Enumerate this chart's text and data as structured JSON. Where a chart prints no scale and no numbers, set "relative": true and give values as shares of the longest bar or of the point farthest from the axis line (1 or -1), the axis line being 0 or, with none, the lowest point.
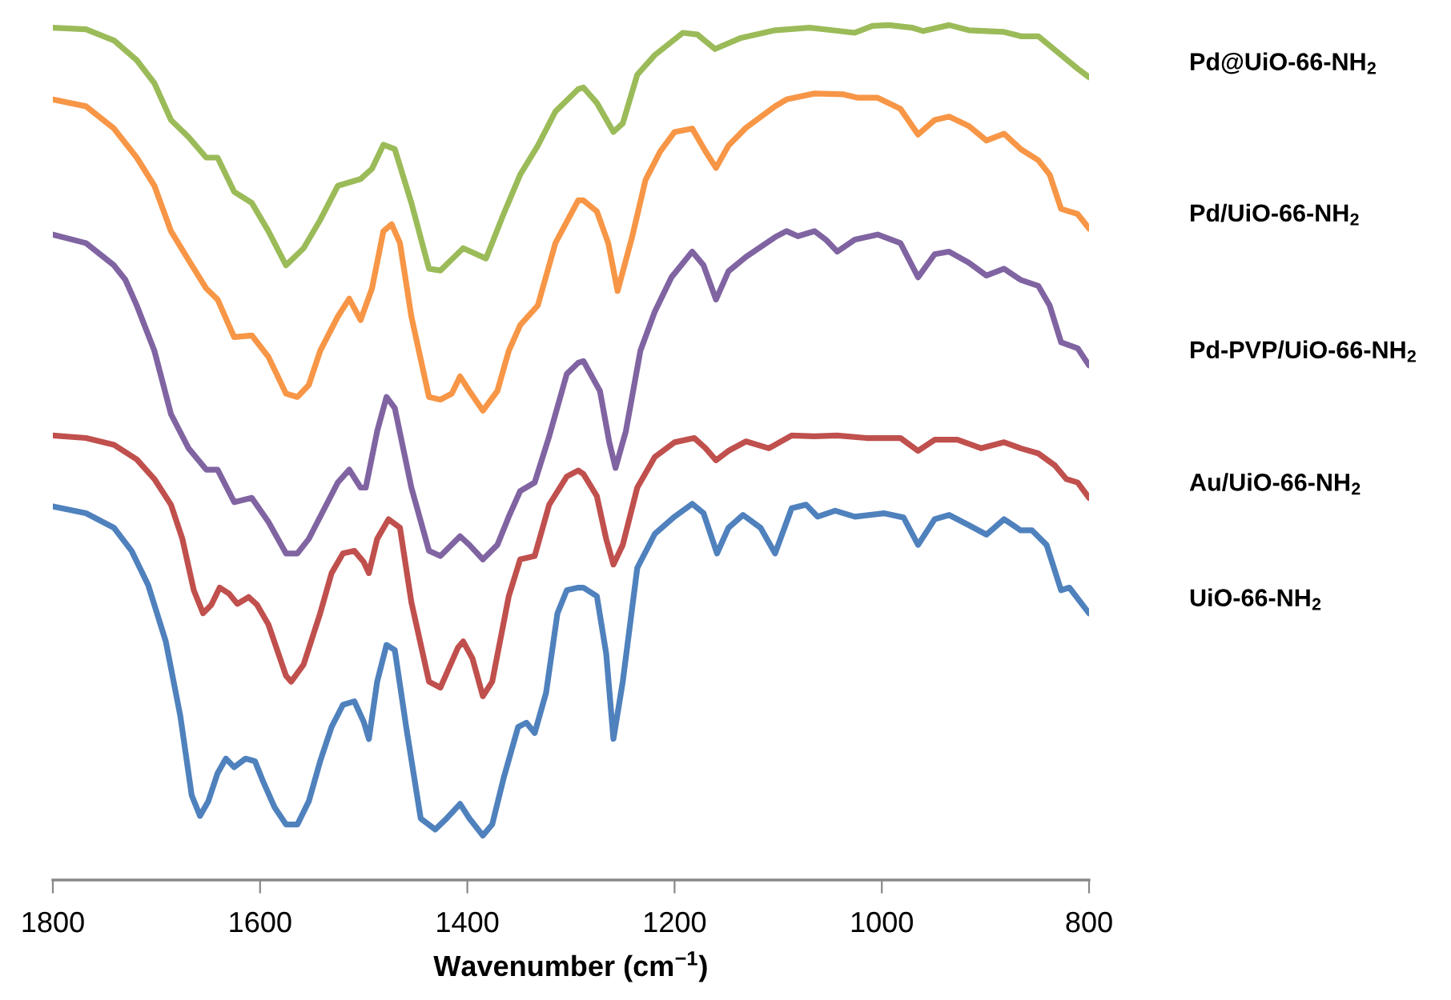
{
  "chart_data": {
    "type": "line",
    "relative": true,
    "xlabel": "Wavenumber (cm$^{−1}$)",
    "xlim": [
      1800,
      800
    ],
    "xticks": [
      1800,
      1600,
      1400,
      1200,
      1000,
      800
    ],
    "grid": false,
    "legend": false,
    "marker": "none",
    "line_style": "solid",
    "series": [
      {
        "name": "Pd@UiO-66-NH$_{2}$",
        "color": "#9bbb59",
        "x": [
          1800,
          1768,
          1741,
          1719,
          1702,
          1686,
          1669,
          1652,
          1641,
          1625,
          1608,
          1592,
          1575,
          1558,
          1542,
          1525,
          1503,
          1492,
          1481,
          1470,
          1454,
          1437,
          1426,
          1404,
          1382,
          1365,
          1349,
          1332,
          1315,
          1293,
          1288,
          1275,
          1259,
          1250,
          1236,
          1219,
          1192,
          1178,
          1161,
          1136,
          1103,
          1070,
          1048,
          1026,
          1009,
          993,
          971,
          960,
          935,
          916,
          882,
          866,
          849,
          827,
          811,
          800
        ],
        "values": [
          0.997,
          0.995,
          0.982,
          0.959,
          0.932,
          0.889,
          0.869,
          0.845,
          0.845,
          0.805,
          0.792,
          0.759,
          0.719,
          0.739,
          0.772,
          0.812,
          0.82,
          0.832,
          0.86,
          0.855,
          0.792,
          0.715,
          0.713,
          0.739,
          0.727,
          0.779,
          0.825,
          0.859,
          0.899,
          0.925,
          0.927,
          0.909,
          0.875,
          0.885,
          0.942,
          0.965,
          0.991,
          0.989,
          0.972,
          0.985,
          0.994,
          0.997,
          0.994,
          0.991,
          0.999,
          1.0,
          0.997,
          0.993,
          1.0,
          0.994,
          0.992,
          0.987,
          0.987,
          0.965,
          0.949,
          0.939
        ]
      },
      {
        "name": "Pd/UiO-66-NH$_{2}$",
        "color": "#f79646",
        "x": [
          1800,
          1768,
          1741,
          1719,
          1702,
          1686,
          1669,
          1652,
          1641,
          1625,
          1608,
          1592,
          1575,
          1564,
          1553,
          1542,
          1525,
          1514,
          1503,
          1492,
          1481,
          1473,
          1465,
          1454,
          1437,
          1426,
          1415,
          1407,
          1398,
          1385,
          1371,
          1360,
          1349,
          1332,
          1315,
          1293,
          1288,
          1275,
          1264,
          1255,
          1241,
          1228,
          1214,
          1200,
          1183,
          1170,
          1160,
          1148,
          1131,
          1103,
          1092,
          1065,
          1037,
          1023,
          1004,
          982,
          965,
          949,
          935,
          916,
          899,
          882,
          866,
          849,
          838,
          827,
          811,
          800
        ],
        "values": [
          0.913,
          0.905,
          0.879,
          0.845,
          0.812,
          0.759,
          0.725,
          0.692,
          0.679,
          0.635,
          0.637,
          0.612,
          0.569,
          0.565,
          0.579,
          0.619,
          0.659,
          0.68,
          0.655,
          0.692,
          0.759,
          0.767,
          0.745,
          0.659,
          0.565,
          0.562,
          0.569,
          0.589,
          0.572,
          0.549,
          0.572,
          0.619,
          0.649,
          0.672,
          0.745,
          0.795,
          0.795,
          0.782,
          0.745,
          0.689,
          0.752,
          0.819,
          0.852,
          0.875,
          0.879,
          0.852,
          0.833,
          0.859,
          0.88,
          0.905,
          0.913,
          0.92,
          0.919,
          0.915,
          0.915,
          0.902,
          0.872,
          0.889,
          0.893,
          0.882,
          0.865,
          0.873,
          0.855,
          0.842,
          0.825,
          0.785,
          0.779,
          0.762
        ]
      },
      {
        "name": "Pd-PVP/UiO-66-NH$_{2}$",
        "color": "#8064a2",
        "x": [
          1800,
          1768,
          1741,
          1730,
          1719,
          1702,
          1686,
          1669,
          1652,
          1641,
          1625,
          1608,
          1592,
          1575,
          1564,
          1553,
          1542,
          1525,
          1514,
          1503,
          1498,
          1487,
          1478,
          1470,
          1454,
          1437,
          1426,
          1407,
          1398,
          1385,
          1371,
          1360,
          1349,
          1335,
          1321,
          1304,
          1293,
          1288,
          1272,
          1263,
          1257,
          1247,
          1233,
          1219,
          1203,
          1183,
          1172,
          1160,
          1148,
          1131,
          1103,
          1092,
          1081,
          1065,
          1054,
          1043,
          1026,
          1004,
          982,
          965,
          949,
          935,
          916,
          899,
          882,
          866,
          849,
          838,
          827,
          811,
          800
        ],
        "values": [
          0.755,
          0.745,
          0.719,
          0.702,
          0.672,
          0.619,
          0.545,
          0.505,
          0.48,
          0.48,
          0.442,
          0.447,
          0.419,
          0.382,
          0.382,
          0.399,
          0.425,
          0.465,
          0.48,
          0.459,
          0.459,
          0.525,
          0.565,
          0.552,
          0.459,
          0.385,
          0.379,
          0.402,
          0.392,
          0.375,
          0.392,
          0.425,
          0.455,
          0.465,
          0.519,
          0.592,
          0.605,
          0.607,
          0.572,
          0.512,
          0.482,
          0.525,
          0.619,
          0.665,
          0.705,
          0.735,
          0.719,
          0.679,
          0.712,
          0.729,
          0.752,
          0.759,
          0.753,
          0.759,
          0.749,
          0.735,
          0.749,
          0.755,
          0.745,
          0.705,
          0.732,
          0.735,
          0.722,
          0.707,
          0.715,
          0.702,
          0.695,
          0.672,
          0.629,
          0.622,
          0.602
        ]
      },
      {
        "name": "Au/UiO-66-NH$_{2}$",
        "color": "#c0504d",
        "x": [
          1800,
          1768,
          1741,
          1719,
          1702,
          1686,
          1675,
          1664,
          1655,
          1647,
          1639,
          1630,
          1622,
          1611,
          1603,
          1592,
          1575,
          1570,
          1558,
          1542,
          1531,
          1520,
          1509,
          1500,
          1495,
          1487,
          1476,
          1465,
          1454,
          1437,
          1426,
          1409,
          1404,
          1395,
          1385,
          1376,
          1360,
          1349,
          1335,
          1321,
          1304,
          1293,
          1288,
          1275,
          1266,
          1259,
          1250,
          1236,
          1219,
          1200,
          1181,
          1170,
          1160,
          1148,
          1131,
          1109,
          1087,
          1065,
          1043,
          1015,
          982,
          965,
          949,
          927,
          904,
          882,
          866,
          849,
          833,
          822,
          811,
          800
        ],
        "values": [
          0.52,
          0.517,
          0.509,
          0.492,
          0.469,
          0.439,
          0.399,
          0.339,
          0.312,
          0.322,
          0.342,
          0.335,
          0.323,
          0.331,
          0.322,
          0.299,
          0.239,
          0.232,
          0.252,
          0.312,
          0.359,
          0.382,
          0.385,
          0.372,
          0.359,
          0.399,
          0.422,
          0.412,
          0.325,
          0.232,
          0.225,
          0.272,
          0.279,
          0.259,
          0.215,
          0.232,
          0.332,
          0.375,
          0.379,
          0.439,
          0.472,
          0.479,
          0.475,
          0.449,
          0.399,
          0.369,
          0.392,
          0.459,
          0.495,
          0.512,
          0.517,
          0.505,
          0.491,
          0.502,
          0.513,
          0.505,
          0.52,
          0.519,
          0.52,
          0.517,
          0.517,
          0.502,
          0.515,
          0.515,
          0.505,
          0.512,
          0.505,
          0.499,
          0.485,
          0.469,
          0.465,
          0.447
        ]
      },
      {
        "name": "UiO-66-NH$_{2}$",
        "color": "#4f81bd",
        "x": [
          1800,
          1768,
          1741,
          1724,
          1708,
          1691,
          1677,
          1666,
          1658,
          1650,
          1641,
          1633,
          1625,
          1614,
          1605,
          1597,
          1586,
          1575,
          1564,
          1553,
          1542,
          1531,
          1520,
          1509,
          1500,
          1495,
          1487,
          1478,
          1470,
          1459,
          1445,
          1431,
          1420,
          1407,
          1398,
          1385,
          1376,
          1365,
          1351,
          1343,
          1335,
          1324,
          1313,
          1304,
          1293,
          1288,
          1275,
          1266,
          1259,
          1250,
          1236,
          1219,
          1200,
          1183,
          1172,
          1159,
          1148,
          1134,
          1117,
          1103,
          1087,
          1073,
          1062,
          1045,
          1026,
          998,
          979,
          965,
          949,
          935,
          916,
          899,
          882,
          866,
          855,
          841,
          827,
          819,
          800
        ],
        "values": [
          0.437,
          0.429,
          0.412,
          0.385,
          0.345,
          0.279,
          0.192,
          0.099,
          0.075,
          0.092,
          0.125,
          0.142,
          0.132,
          0.142,
          0.139,
          0.115,
          0.085,
          0.065,
          0.065,
          0.092,
          0.139,
          0.179,
          0.205,
          0.209,
          0.185,
          0.165,
          0.232,
          0.275,
          0.269,
          0.179,
          0.072,
          0.059,
          0.072,
          0.089,
          0.072,
          0.052,
          0.065,
          0.119,
          0.179,
          0.184,
          0.172,
          0.219,
          0.312,
          0.339,
          0.342,
          0.342,
          0.332,
          0.265,
          0.165,
          0.232,
          0.365,
          0.405,
          0.425,
          0.44,
          0.429,
          0.382,
          0.412,
          0.427,
          0.412,
          0.382,
          0.435,
          0.439,
          0.425,
          0.432,
          0.425,
          0.429,
          0.424,
          0.392,
          0.422,
          0.427,
          0.415,
          0.404,
          0.422,
          0.409,
          0.409,
          0.392,
          0.339,
          0.342,
          0.312
        ]
      }
    ]
  }
}
